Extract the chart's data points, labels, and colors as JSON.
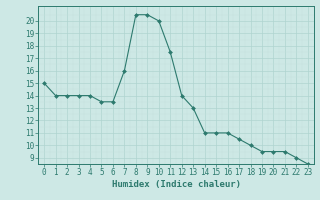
{
  "x": [
    0,
    1,
    2,
    3,
    4,
    5,
    6,
    7,
    8,
    9,
    10,
    11,
    12,
    13,
    14,
    15,
    16,
    17,
    18,
    19,
    20,
    21,
    22,
    23
  ],
  "y": [
    15,
    14,
    14,
    14,
    14,
    13.5,
    13.5,
    16,
    20.5,
    20.5,
    20,
    17.5,
    14,
    13,
    11,
    11,
    11,
    10.5,
    10,
    9.5,
    9.5,
    9.5,
    9,
    8.5
  ],
  "line_color": "#2d7a6e",
  "marker": "D",
  "marker_size": 2,
  "bg_color": "#cde8e5",
  "grid_color_major": "#b0d4d0",
  "grid_color_minor": "#c4e0dc",
  "xlabel": "Humidex (Indice chaleur)",
  "xlim": [
    -0.5,
    23.5
  ],
  "ylim": [
    8.5,
    21.2
  ],
  "yticks": [
    9,
    10,
    11,
    12,
    13,
    14,
    15,
    16,
    17,
    18,
    19,
    20
  ],
  "xticks": [
    0,
    1,
    2,
    3,
    4,
    5,
    6,
    7,
    8,
    9,
    10,
    11,
    12,
    13,
    14,
    15,
    16,
    17,
    18,
    19,
    20,
    21,
    22,
    23
  ],
  "axis_color": "#2d7a6e",
  "tick_color": "#2d7a6e",
  "label_color": "#2d7a6e",
  "label_fontsize": 6.5,
  "tick_fontsize": 5.5
}
